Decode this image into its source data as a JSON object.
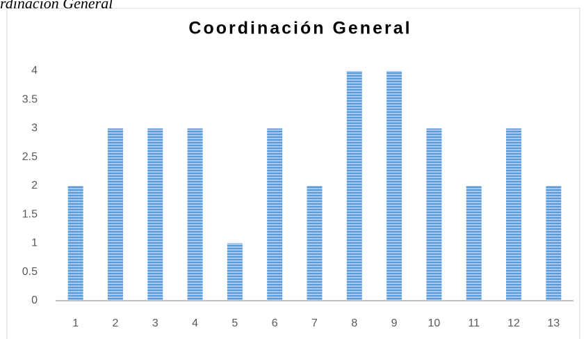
{
  "caption": "rdinación General",
  "chart_data": {
    "type": "bar",
    "title": "Coordinación General",
    "categories": [
      "1",
      "2",
      "3",
      "4",
      "5",
      "6",
      "7",
      "8",
      "9",
      "10",
      "11",
      "12",
      "13"
    ],
    "values": [
      2,
      3,
      3,
      3,
      1,
      3,
      2,
      4,
      4,
      3,
      2,
      3,
      2
    ],
    "color": "#5b9bd5",
    "ylim": [
      0,
      4
    ],
    "yticks": [
      0,
      0.5,
      1,
      1.5,
      2,
      2.5,
      3,
      3.5,
      4
    ],
    "grid": false
  }
}
